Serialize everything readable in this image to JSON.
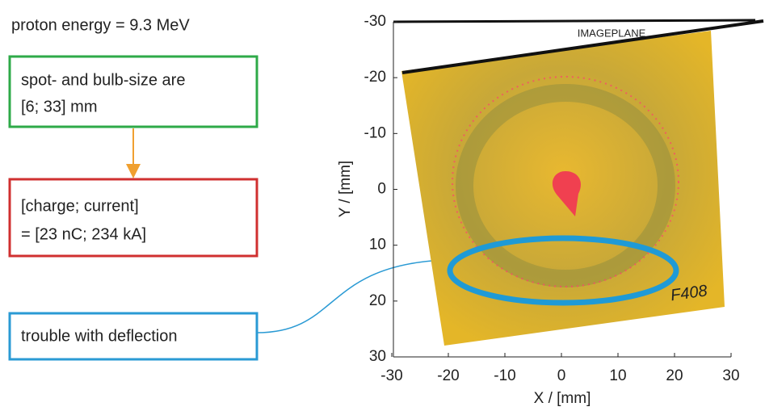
{
  "annotations": {
    "energy": "proton energy  =  9.3  MeV",
    "size_box": [
      "spot- and bulb-size are",
      "[6; 33] mm"
    ],
    "charge_box": [
      "[charge; current]",
      "= [23 nC; 234 kA]"
    ],
    "trouble_box": "trouble with deflection"
  },
  "plot": {
    "xlabel": "X / [mm]",
    "ylabel": "Y / [mm]",
    "xlim": [
      -30,
      30
    ],
    "ylim": [
      -30,
      30
    ],
    "xticks": [
      -30,
      -20,
      -10,
      0,
      10,
      20,
      30
    ],
    "yticks": [
      -30,
      -20,
      -10,
      0,
      10,
      20,
      30
    ],
    "image_plane_label": "IMAGEPLANE",
    "sample_label": "F408"
  }
}
